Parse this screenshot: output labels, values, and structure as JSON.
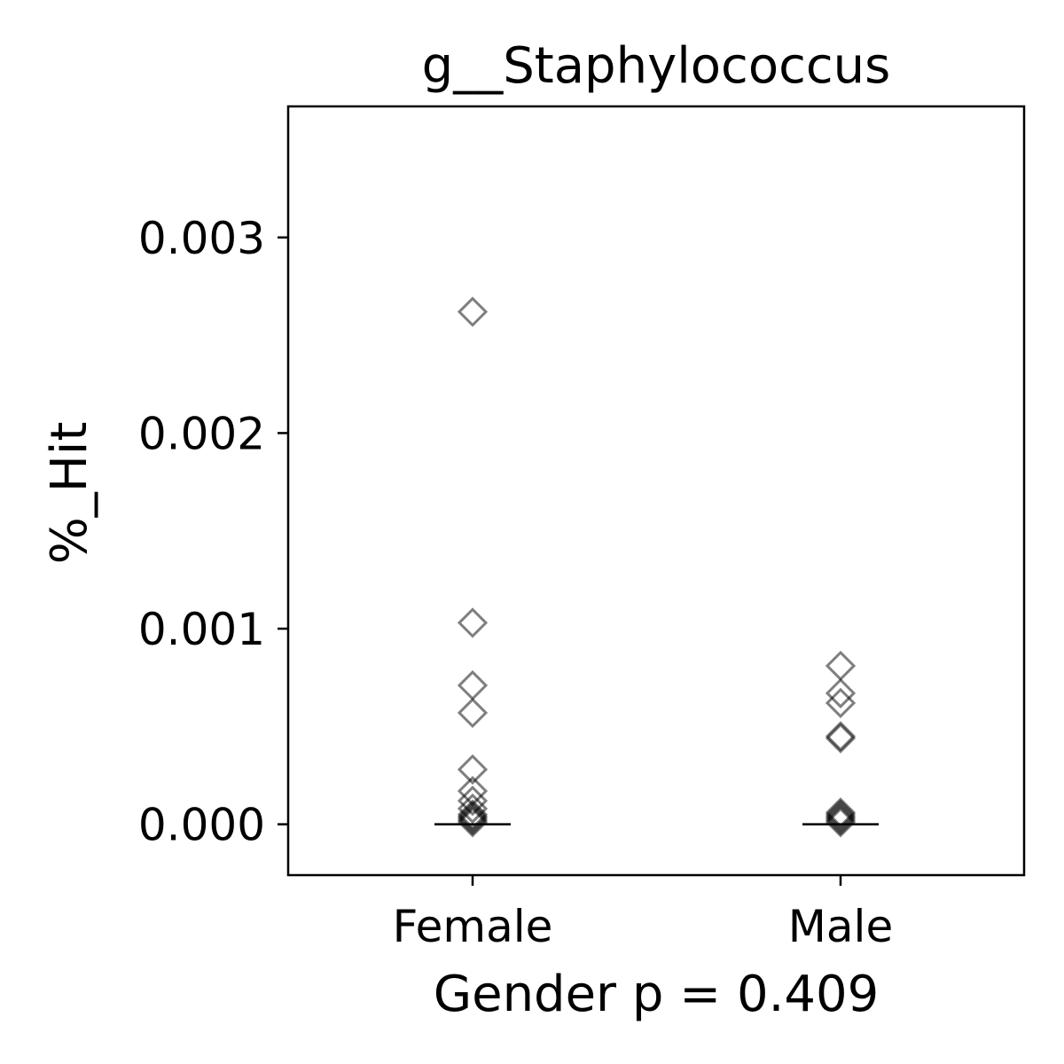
{
  "chart_data": {
    "type": "scatter",
    "title": "g__Staphylococcus",
    "xlabel": "Gender p = 0.409",
    "ylabel": "%_Hit",
    "categories": [
      "Female",
      "Male"
    ],
    "y_ticks": [
      "0.000",
      "0.001",
      "0.002",
      "0.003"
    ],
    "ylim": [
      -0.00026,
      0.00367
    ],
    "grid": false,
    "marker": "diamond",
    "marker_color": "#000000",
    "marker_opacity": 0.5,
    "series": [
      {
        "category": "Female",
        "values": [
          0.00262,
          0.00103,
          0.00071,
          0.00057,
          0.00028,
          0.00017,
          0.00012,
          8e-05,
          5e-05,
          4e-05,
          3e-05,
          2e-05,
          1e-05
        ]
      },
      {
        "category": "Male",
        "values": [
          0.00081,
          0.00067,
          0.00062,
          0.00045,
          0.00044,
          6e-05,
          5e-05,
          4e-05,
          3e-05,
          2e-05,
          1e-05
        ]
      }
    ],
    "medians": [
      0.0,
      0.0
    ]
  }
}
